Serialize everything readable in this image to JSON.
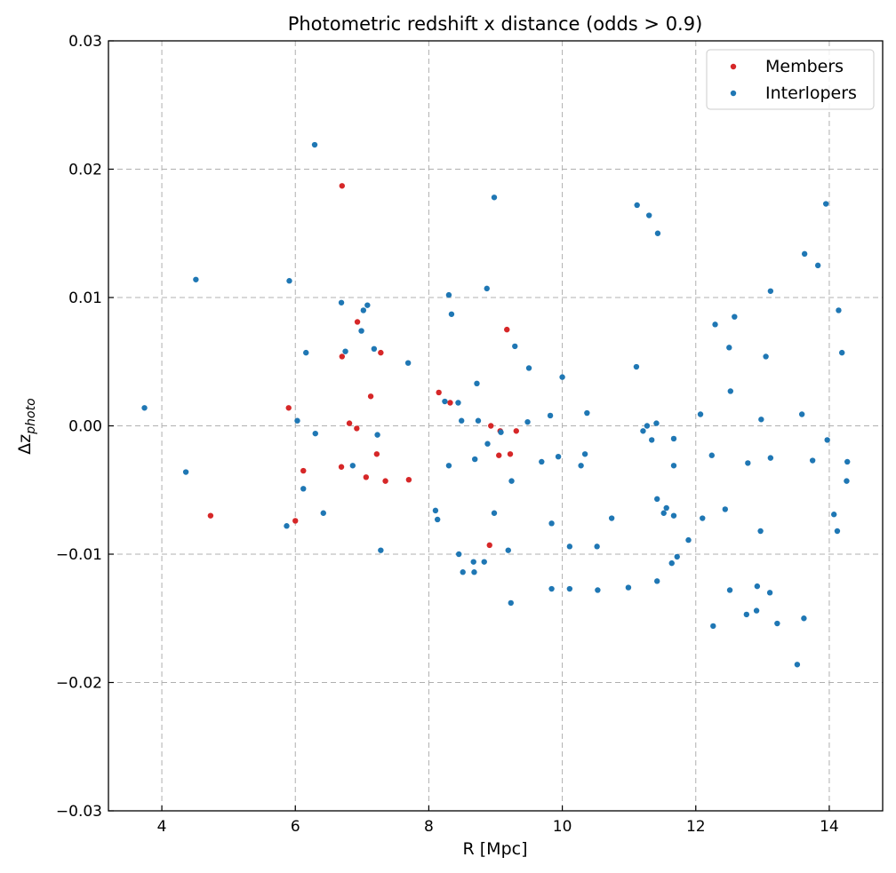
{
  "chart_data": {
    "type": "scatter",
    "title": "Photometric redshift x distance (odds > 0.9)",
    "xlabel": "R [Mpc]",
    "ylabel_main": "Δz",
    "ylabel_sub": "photo",
    "xlim": [
      3.2,
      14.8
    ],
    "ylim": [
      -0.03,
      0.03
    ],
    "xticks": [
      4,
      6,
      8,
      10,
      12,
      14
    ],
    "yticks": [
      -0.03,
      -0.02,
      -0.01,
      0.0,
      0.01,
      0.02,
      0.03
    ],
    "ytick_labels": [
      "−0.03",
      "−0.02",
      "−0.01",
      "0.00",
      "0.01",
      "0.02",
      "0.03"
    ],
    "grid": true,
    "legend_position": "top-right",
    "series": [
      {
        "name": "Members",
        "color": "#d62728",
        "points": [
          [
            6.7,
            0.0187
          ],
          [
            9.17,
            0.0075
          ],
          [
            6.93,
            0.0081
          ],
          [
            6.7,
            0.0054
          ],
          [
            7.28,
            0.0057
          ],
          [
            7.13,
            0.0023
          ],
          [
            8.15,
            0.0026
          ],
          [
            8.32,
            0.0018
          ],
          [
            5.9,
            0.0014
          ],
          [
            6.81,
            0.0002
          ],
          [
            6.92,
            -0.0002
          ],
          [
            8.93,
            0.0
          ],
          [
            9.07,
            -0.0004
          ],
          [
            9.31,
            -0.0004
          ],
          [
            7.22,
            -0.0022
          ],
          [
            9.05,
            -0.0023
          ],
          [
            9.22,
            -0.0022
          ],
          [
            6.69,
            -0.0032
          ],
          [
            6.12,
            -0.0035
          ],
          [
            7.06,
            -0.004
          ],
          [
            7.35,
            -0.0043
          ],
          [
            7.7,
            -0.0042
          ],
          [
            4.73,
            -0.007
          ],
          [
            6.0,
            -0.0074
          ],
          [
            8.91,
            -0.0093
          ]
        ]
      },
      {
        "name": "Interlopers",
        "color": "#1f77b4",
        "points": [
          [
            6.29,
            0.0219
          ],
          [
            8.98,
            0.0178
          ],
          [
            11.12,
            0.0172
          ],
          [
            11.3,
            0.0164
          ],
          [
            11.43,
            0.015
          ],
          [
            13.95,
            0.0173
          ],
          [
            13.63,
            0.0134
          ],
          [
            13.83,
            0.0125
          ],
          [
            4.51,
            0.0114
          ],
          [
            5.91,
            0.0113
          ],
          [
            8.87,
            0.0107
          ],
          [
            8.3,
            0.0102
          ],
          [
            13.12,
            0.0105
          ],
          [
            6.69,
            0.0096
          ],
          [
            7.08,
            0.0094
          ],
          [
            7.02,
            0.009
          ],
          [
            8.34,
            0.0087
          ],
          [
            14.14,
            0.009
          ],
          [
            12.58,
            0.0085
          ],
          [
            12.29,
            0.0079
          ],
          [
            6.99,
            0.0074
          ],
          [
            9.29,
            0.0062
          ],
          [
            12.5,
            0.0061
          ],
          [
            7.18,
            0.006
          ],
          [
            6.75,
            0.0058
          ],
          [
            6.16,
            0.0057
          ],
          [
            14.19,
            0.0057
          ],
          [
            13.05,
            0.0054
          ],
          [
            7.69,
            0.0049
          ],
          [
            11.11,
            0.0046
          ],
          [
            9.5,
            0.0045
          ],
          [
            10.0,
            0.0038
          ],
          [
            8.72,
            0.0033
          ],
          [
            12.52,
            0.0027
          ],
          [
            3.74,
            0.0014
          ],
          [
            8.24,
            0.0019
          ],
          [
            8.44,
            0.0018
          ],
          [
            10.37,
            0.001
          ],
          [
            12.07,
            0.0009
          ],
          [
            13.59,
            0.0009
          ],
          [
            9.82,
            0.0008
          ],
          [
            6.03,
            0.0004
          ],
          [
            8.49,
            0.0004
          ],
          [
            8.74,
            0.0004
          ],
          [
            9.48,
            0.0003
          ],
          [
            11.41,
            0.0002
          ],
          [
            12.98,
            0.0005
          ],
          [
            11.27,
            0.0
          ],
          [
            11.21,
            -0.0004
          ],
          [
            9.08,
            -0.0005
          ],
          [
            6.3,
            -0.0006
          ],
          [
            7.23,
            -0.0007
          ],
          [
            11.34,
            -0.0011
          ],
          [
            11.67,
            -0.001
          ],
          [
            13.97,
            -0.0011
          ],
          [
            8.88,
            -0.0014
          ],
          [
            9.94,
            -0.0024
          ],
          [
            10.34,
            -0.0022
          ],
          [
            12.24,
            -0.0023
          ],
          [
            13.12,
            -0.0025
          ],
          [
            8.69,
            -0.0026
          ],
          [
            9.69,
            -0.0028
          ],
          [
            12.78,
            -0.0029
          ],
          [
            13.75,
            -0.0027
          ],
          [
            14.27,
            -0.0028
          ],
          [
            6.86,
            -0.0031
          ],
          [
            8.3,
            -0.0031
          ],
          [
            10.28,
            -0.0031
          ],
          [
            11.67,
            -0.0031
          ],
          [
            4.36,
            -0.0036
          ],
          [
            9.24,
            -0.0043
          ],
          [
            14.26,
            -0.0043
          ],
          [
            6.12,
            -0.0049
          ],
          [
            11.42,
            -0.0057
          ],
          [
            11.56,
            -0.0064
          ],
          [
            8.1,
            -0.0066
          ],
          [
            12.44,
            -0.0065
          ],
          [
            11.52,
            -0.0068
          ],
          [
            6.42,
            -0.0068
          ],
          [
            8.98,
            -0.0068
          ],
          [
            11.67,
            -0.007
          ],
          [
            14.07,
            -0.0069
          ],
          [
            10.74,
            -0.0072
          ],
          [
            12.1,
            -0.0072
          ],
          [
            8.13,
            -0.0073
          ],
          [
            5.87,
            -0.0078
          ],
          [
            9.84,
            -0.0076
          ],
          [
            12.97,
            -0.0082
          ],
          [
            14.12,
            -0.0082
          ],
          [
            11.89,
            -0.0089
          ],
          [
            10.11,
            -0.0094
          ],
          [
            10.52,
            -0.0094
          ],
          [
            7.28,
            -0.0097
          ],
          [
            9.19,
            -0.0097
          ],
          [
            8.45,
            -0.01
          ],
          [
            11.72,
            -0.0102
          ],
          [
            11.64,
            -0.0107
          ],
          [
            8.67,
            -0.0106
          ],
          [
            8.83,
            -0.0106
          ],
          [
            8.51,
            -0.0114
          ],
          [
            8.68,
            -0.0114
          ],
          [
            11.42,
            -0.0121
          ],
          [
            12.92,
            -0.0125
          ],
          [
            9.84,
            -0.0127
          ],
          [
            10.11,
            -0.0127
          ],
          [
            10.53,
            -0.0128
          ],
          [
            10.99,
            -0.0126
          ],
          [
            12.51,
            -0.0128
          ],
          [
            13.11,
            -0.013
          ],
          [
            9.23,
            -0.0138
          ],
          [
            12.91,
            -0.0144
          ],
          [
            12.76,
            -0.0147
          ],
          [
            13.62,
            -0.015
          ],
          [
            13.22,
            -0.0154
          ],
          [
            12.26,
            -0.0156
          ],
          [
            13.52,
            -0.0186
          ]
        ]
      }
    ]
  }
}
